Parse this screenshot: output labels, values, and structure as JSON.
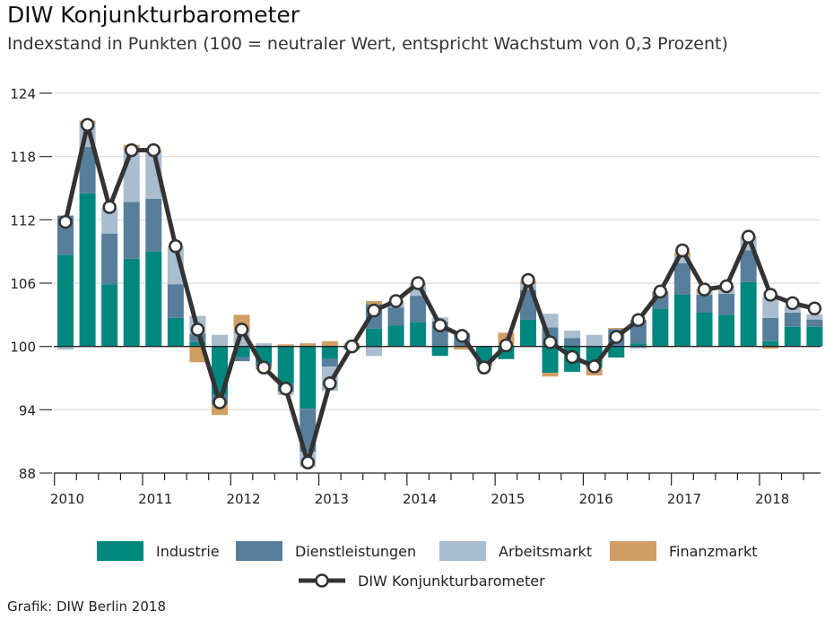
{
  "chart_data": {
    "type": "bar",
    "subtype": "stacked bar with line",
    "title": "DIW Konjunkturbarometer",
    "subtitle": "Indexstand in Punkten (100 = neutraler Wert, entspricht Wachstum von 0,3 Prozent)",
    "source": "Grafik: DIW Berlin 2018",
    "baseline": 100,
    "ylim": [
      88,
      124
    ],
    "yticks": [
      124,
      118,
      112,
      106,
      100,
      94,
      88
    ],
    "xtick_labels": [
      "2010",
      "2011",
      "2012",
      "2013",
      "2014",
      "2015",
      "2016",
      "2017",
      "2018"
    ],
    "quarters_start": "2010-Q1",
    "series": [
      {
        "name": "Industrie",
        "color": "#00877e",
        "values": [
          8.7,
          14.5,
          5.9,
          8.3,
          9.0,
          2.7,
          0.4,
          -4.6,
          -1.0,
          -1.6,
          -3.5,
          -5.9,
          -1.2,
          -0.2,
          1.7,
          2.0,
          2.3,
          -0.9,
          0.0,
          -1.4,
          -1.2,
          2.55,
          -2.5,
          -2.4,
          -2.0,
          -1.05,
          0.3,
          3.6,
          4.9,
          3.2,
          3.0,
          6.1,
          0.5,
          1.85,
          1.85
        ]
      },
      {
        "name": "Dienstleistungen",
        "color": "#577f9b",
        "values": [
          3.7,
          4.4,
          4.8,
          5.4,
          5.0,
          3.2,
          0.8,
          -0.9,
          -0.4,
          -0.3,
          -0.8,
          -4.1,
          -0.7,
          -0.1,
          2.3,
          1.7,
          2.5,
          2.35,
          1.2,
          -0.4,
          0.0,
          2.8,
          1.8,
          0.8,
          0.0,
          1.65,
          2.2,
          1.55,
          3.0,
          1.7,
          2.0,
          3.0,
          2.2,
          1.35,
          0.7
        ]
      },
      {
        "name": "Arbeitsmarkt",
        "color": "#a9bdcf",
        "values": [
          -0.3,
          2.3,
          2.4,
          4.9,
          4.3,
          3.6,
          1.7,
          1.1,
          1.5,
          0.3,
          -0.3,
          -1.4,
          -2.3,
          0.0,
          -0.9,
          0.3,
          1.0,
          0.4,
          0.1,
          0.0,
          0.0,
          0.55,
          1.3,
          0.7,
          1.1,
          0.0,
          -0.2,
          0.0,
          0.7,
          0.2,
          0.75,
          1.35,
          2.0,
          0.6,
          0.5
        ]
      },
      {
        "name": "Finanzmarkt",
        "color": "#d19f64",
        "values": [
          0.0,
          0.2,
          0.0,
          0.5,
          0.3,
          0.0,
          -1.5,
          -1.0,
          1.5,
          -0.3,
          0.2,
          0.3,
          0.5,
          0.3,
          0.3,
          0.3,
          0.2,
          0.0,
          -0.3,
          -0.1,
          1.3,
          0.3,
          -0.35,
          0.0,
          -0.75,
          0.1,
          0.0,
          0.1,
          0.3,
          0.3,
          0.0,
          0.0,
          -0.2,
          0.0,
          0.0
        ]
      }
    ],
    "line": {
      "name": "DIW Konjunkturbarometer",
      "color": "#333333",
      "values": [
        111.8,
        121.0,
        113.2,
        118.6,
        118.6,
        109.5,
        101.6,
        94.7,
        101.6,
        98.0,
        96.0,
        89.0,
        96.5,
        100.0,
        103.4,
        104.3,
        106.0,
        102.0,
        101.0,
        98.0,
        100.1,
        106.3,
        100.4,
        99.0,
        98.1,
        100.9,
        102.5,
        105.2,
        109.1,
        105.4,
        105.7,
        110.4,
        104.9,
        104.1,
        103.6
      ]
    },
    "legend_position": "bottom",
    "grid": true
  }
}
